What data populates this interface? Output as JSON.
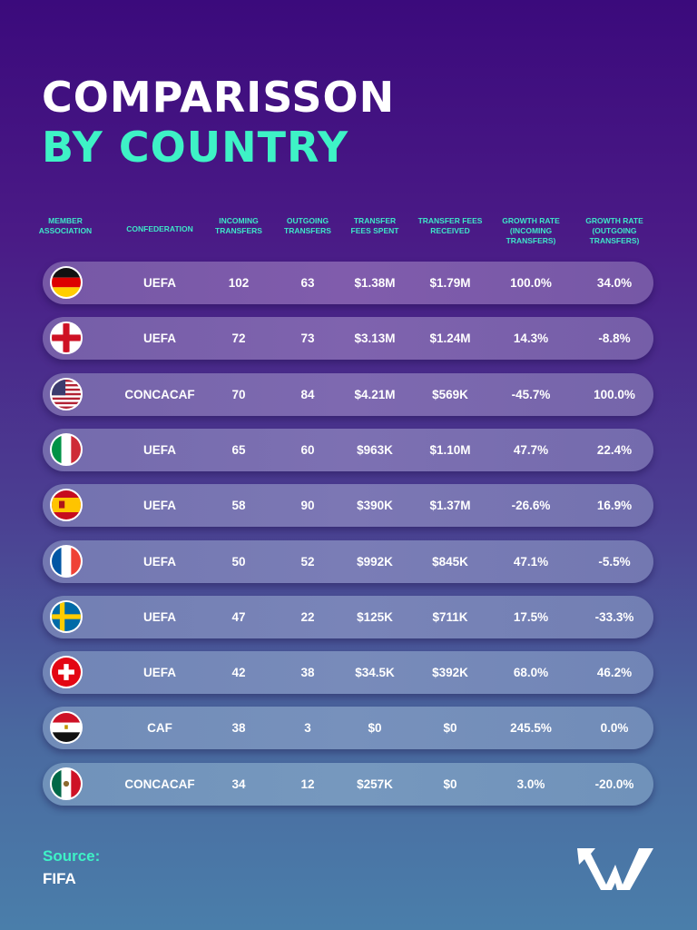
{
  "title_line1": "COMPARISSON",
  "title_line2": "BY COUNTRY",
  "colors": {
    "accent": "#3ef2c6",
    "title": "#ffffff"
  },
  "chart_data": {
    "type": "table",
    "columns": [
      "MEMBER ASSOCIATION",
      "CONFEDERATION",
      "INCOMING TRANSFERS",
      "OUTGOING TRANSFERS",
      "TRANSFER FEES SPENT",
      "TRANSFER FEES RECEIVED",
      "GROWTH RATE (INCOMING TRANSFERS)",
      "GROWTH RATE (OUTGOING TRANSFERS)"
    ],
    "rows": [
      {
        "flag": "germany-flag",
        "confederation": "UEFA",
        "incoming": "102",
        "outgoing": "63",
        "spent": "$1.38M",
        "received": "$1.79M",
        "growth_in": "100.0%",
        "growth_out": "34.0%"
      },
      {
        "flag": "england-flag",
        "confederation": "UEFA",
        "incoming": "72",
        "outgoing": "73",
        "spent": "$3.13M",
        "received": "$1.24M",
        "growth_in": "14.3%",
        "growth_out": "-8.8%"
      },
      {
        "flag": "usa-flag",
        "confederation": "CONCACAF",
        "incoming": "70",
        "outgoing": "84",
        "spent": "$4.21M",
        "received": "$569K",
        "growth_in": "-45.7%",
        "growth_out": "100.0%"
      },
      {
        "flag": "italy-flag",
        "confederation": "UEFA",
        "incoming": "65",
        "outgoing": "60",
        "spent": "$963K",
        "received": "$1.10M",
        "growth_in": "47.7%",
        "growth_out": "22.4%"
      },
      {
        "flag": "spain-flag",
        "confederation": "UEFA",
        "incoming": "58",
        "outgoing": "90",
        "spent": "$390K",
        "received": "$1.37M",
        "growth_in": "-26.6%",
        "growth_out": "16.9%"
      },
      {
        "flag": "france-flag",
        "confederation": "UEFA",
        "incoming": "50",
        "outgoing": "52",
        "spent": "$992K",
        "received": "$845K",
        "growth_in": "47.1%",
        "growth_out": "-5.5%"
      },
      {
        "flag": "sweden-flag",
        "confederation": "UEFA",
        "incoming": "47",
        "outgoing": "22",
        "spent": "$125K",
        "received": "$711K",
        "growth_in": "17.5%",
        "growth_out": "-33.3%"
      },
      {
        "flag": "switzerland-flag",
        "confederation": "UEFA",
        "incoming": "42",
        "outgoing": "38",
        "spent": "$34.5K",
        "received": "$392K",
        "growth_in": "68.0%",
        "growth_out": "46.2%"
      },
      {
        "flag": "egypt-flag",
        "confederation": "CAF",
        "incoming": "38",
        "outgoing": "3",
        "spent": "$0",
        "received": "$0",
        "growth_in": "245.5%",
        "growth_out": "0.0%"
      },
      {
        "flag": "mexico-flag",
        "confederation": "CONCACAF",
        "incoming": "34",
        "outgoing": "12",
        "spent": "$257K",
        "received": "$0",
        "growth_in": "3.0%",
        "growth_out": "-20.0%"
      }
    ]
  },
  "source": {
    "label": "Source:",
    "value": "FIFA"
  },
  "logo": "TW"
}
